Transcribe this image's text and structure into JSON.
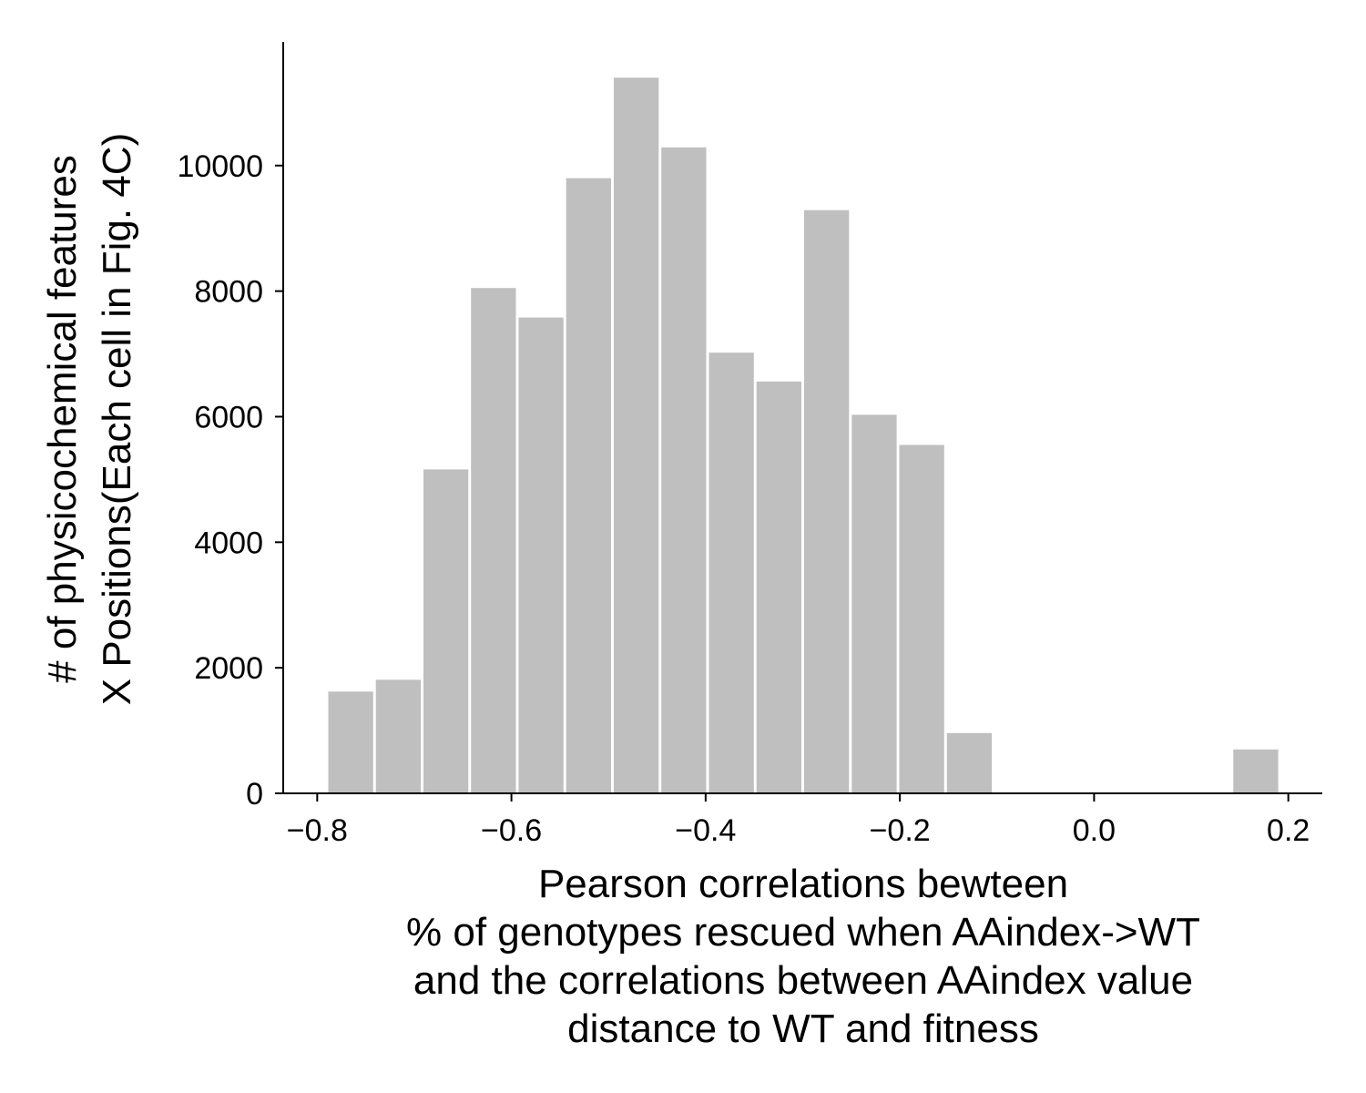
{
  "chart_data": {
    "type": "bar",
    "title": "",
    "bar_color": "#bfbfbf",
    "axis_color": "#000000",
    "background": "#ffffff",
    "grid": false,
    "legend": "none",
    "xlim": [
      -0.835,
      0.235
    ],
    "ylim": [
      0,
      11970
    ],
    "xticks": [
      -0.8,
      -0.6,
      -0.4,
      -0.2,
      0.0,
      0.2
    ],
    "xtick_labels": [
      "−0.8",
      "−0.6",
      "−0.4",
      "−0.2",
      "0.0",
      "0.2"
    ],
    "yticks": [
      0,
      2000,
      4000,
      6000,
      8000,
      10000
    ],
    "ytick_labels": [
      "0",
      "2000",
      "4000",
      "6000",
      "8000",
      "10000"
    ],
    "xlabel_lines": [
      "Pearson correlations bewteen",
      "% of genotypes rescued when AAindex->WT",
      "and the correlations between AAindex value",
      "distance to WT and fitness"
    ],
    "ylabel_lines": [
      "# of physicochemical features",
      "X Positions(Each cell in Fig. 4C)"
    ],
    "bins": [
      {
        "x0": -0.79,
        "x1": -0.741,
        "value": 1620
      },
      {
        "x0": -0.741,
        "x1": -0.692,
        "value": 1810
      },
      {
        "x0": -0.692,
        "x1": -0.643,
        "value": 5160
      },
      {
        "x0": -0.643,
        "x1": -0.594,
        "value": 8050
      },
      {
        "x0": -0.594,
        "x1": -0.545,
        "value": 7580
      },
      {
        "x0": -0.545,
        "x1": -0.496,
        "value": 9800
      },
      {
        "x0": -0.496,
        "x1": -0.447,
        "value": 11400
      },
      {
        "x0": -0.447,
        "x1": -0.398,
        "value": 10290
      },
      {
        "x0": -0.398,
        "x1": -0.349,
        "value": 7020
      },
      {
        "x0": -0.349,
        "x1": -0.3,
        "value": 6560
      },
      {
        "x0": -0.3,
        "x1": -0.251,
        "value": 9290
      },
      {
        "x0": -0.251,
        "x1": -0.202,
        "value": 6030
      },
      {
        "x0": -0.202,
        "x1": -0.153,
        "value": 5550
      },
      {
        "x0": -0.153,
        "x1": -0.104,
        "value": 960
      },
      {
        "x0": 0.142,
        "x1": 0.191,
        "value": 700
      }
    ]
  }
}
